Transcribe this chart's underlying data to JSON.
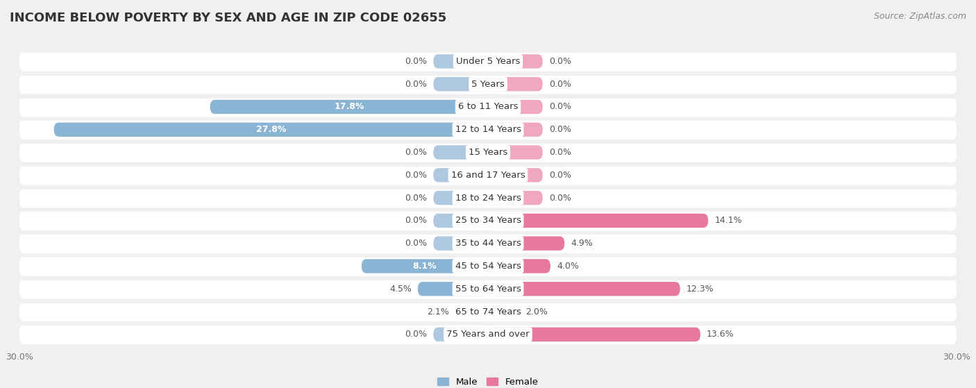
{
  "title": "INCOME BELOW POVERTY BY SEX AND AGE IN ZIP CODE 02655",
  "source": "Source: ZipAtlas.com",
  "categories": [
    "Under 5 Years",
    "5 Years",
    "6 to 11 Years",
    "12 to 14 Years",
    "15 Years",
    "16 and 17 Years",
    "18 to 24 Years",
    "25 to 34 Years",
    "35 to 44 Years",
    "45 to 54 Years",
    "55 to 64 Years",
    "65 to 74 Years",
    "75 Years and over"
  ],
  "male_values": [
    0.0,
    0.0,
    17.8,
    27.8,
    0.0,
    0.0,
    0.0,
    0.0,
    0.0,
    8.1,
    4.5,
    2.1,
    0.0
  ],
  "female_values": [
    0.0,
    0.0,
    0.0,
    0.0,
    0.0,
    0.0,
    0.0,
    14.1,
    4.9,
    4.0,
    12.3,
    2.0,
    13.6
  ],
  "male_color": "#8ab4d4",
  "female_color": "#e8799e",
  "male_color_light": "#aec8df",
  "female_color_light": "#f0a8be",
  "male_label": "Male",
  "female_label": "Female",
  "xlim": 30.0,
  "stub_size": 3.5,
  "background_color": "#f0f0f0",
  "row_bg_color": "#ffffff",
  "row_alt_color": "#f5f5f5",
  "title_fontsize": 13,
  "label_fontsize": 9.5,
  "value_fontsize": 9,
  "tick_fontsize": 9,
  "source_fontsize": 9
}
